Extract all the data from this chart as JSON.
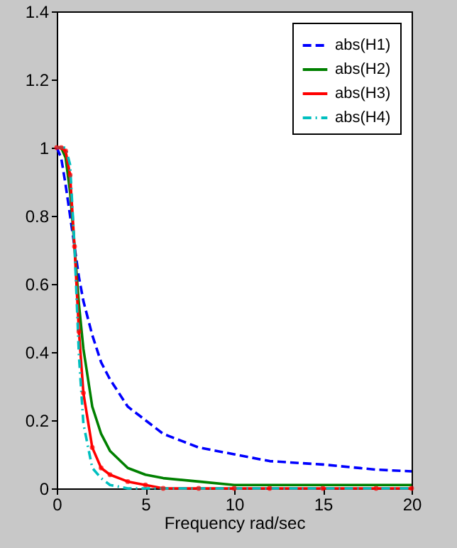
{
  "chart_data": {
    "type": "line",
    "xlabel": "Frequency   rad/sec",
    "xlim": [
      0,
      20
    ],
    "xticks": [
      0,
      5,
      10,
      15,
      20
    ],
    "ylim": [
      0,
      1.4
    ],
    "yticks": [
      0,
      0.2,
      0.4,
      0.6,
      0.8,
      1,
      1.2,
      1.4
    ],
    "grid": false,
    "legend": "top right",
    "x": [
      0,
      0.25,
      0.5,
      0.75,
      1,
      1.25,
      1.5,
      2,
      2.5,
      3,
      4,
      5,
      6,
      8,
      10,
      12,
      15,
      18,
      20
    ],
    "series": [
      {
        "name": "abs(H1)",
        "color": "#0000ff",
        "line_style": "dashed",
        "marker": "none",
        "values": [
          1,
          0.97,
          0.89,
          0.8,
          0.71,
          0.62,
          0.55,
          0.45,
          0.37,
          0.32,
          0.24,
          0.2,
          0.16,
          0.12,
          0.1,
          0.08,
          0.07,
          0.055,
          0.05
        ]
      },
      {
        "name": "abs(H2)",
        "color": "#008000",
        "line_style": "solid",
        "marker": "none",
        "values": [
          1,
          1,
          0.97,
          0.87,
          0.71,
          0.54,
          0.41,
          0.24,
          0.16,
          0.11,
          0.06,
          0.04,
          0.03,
          0.02,
          0.01,
          0.01,
          0.01,
          0.01,
          0.01
        ]
      },
      {
        "name": "abs(H3)",
        "color": "#ff0000",
        "line_style": "solid",
        "marker": "circle",
        "values": [
          1,
          1,
          0.99,
          0.92,
          0.71,
          0.46,
          0.28,
          0.12,
          0.06,
          0.04,
          0.02,
          0.01,
          0,
          0,
          0,
          0,
          0,
          0,
          0
        ]
      },
      {
        "name": "abs(H4)",
        "color": "#00bfbf",
        "line_style": "dotted",
        "marker": "none",
        "values": [
          1,
          1,
          1,
          0.95,
          0.71,
          0.39,
          0.19,
          0.06,
          0.03,
          0.01,
          0,
          0,
          0,
          0,
          0,
          0,
          0,
          0,
          0
        ]
      }
    ]
  }
}
